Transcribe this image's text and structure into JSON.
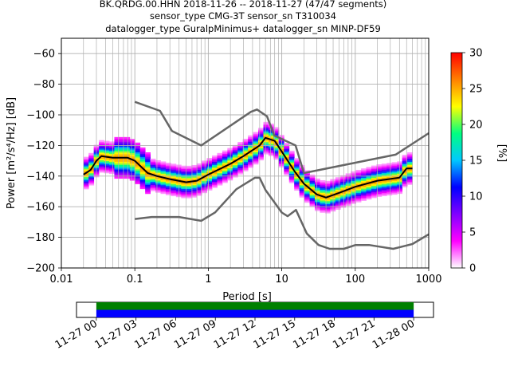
{
  "chart_data": [
    {
      "type": "heatmap",
      "subtype": "probabilistic-power-spectral-density",
      "title_lines": [
        "BK.QRDG.00.HHN   2018-11-26 -- 2018-11-27  (47/47 segments)",
        "sensor_type CMG-3T sensor_sn T310034",
        "datalogger_type GuralpMinimus+ datalogger_sn MINP-DF59"
      ],
      "xlabel": "Period [s]",
      "ylabel": "Power [m²/s⁴/Hz] [dB]",
      "xscale": "log",
      "xlim": [
        0.01,
        1000
      ],
      "ylim": [
        -200,
        -50
      ],
      "x_tick_labels": [
        "0.01",
        "0.1",
        "1",
        "10",
        "100",
        "1000"
      ],
      "y_ticks": [
        -60,
        -80,
        -100,
        -120,
        -140,
        -160,
        -180,
        -200
      ],
      "grid": true,
      "colorbar": {
        "label": "[%]",
        "range": [
          0,
          30
        ],
        "ticks": [
          0,
          5,
          10,
          15,
          20,
          25,
          30
        ],
        "colormap": [
          "#ffffff",
          "#ff00ff",
          "#8000ff",
          "#0000ff",
          "#00c8ff",
          "#00ff80",
          "#ffff00",
          "#ff8000",
          "#ff0000"
        ]
      },
      "series": [
        {
          "name": "",
          "role": "mode",
          "color": "#000000",
          "period": [
            0.02,
            0.025,
            0.03,
            0.035,
            0.05,
            0.08,
            0.1,
            0.15,
            0.2,
            0.3,
            0.5,
            0.7,
            1,
            2,
            3,
            5,
            6,
            8,
            10,
            15,
            20,
            30,
            40,
            60,
            100,
            200,
            400,
            500,
            600
          ],
          "power": [
            -139,
            -136,
            -130,
            -127,
            -128,
            -128,
            -130,
            -138,
            -140,
            -142,
            -144,
            -143,
            -139,
            -132,
            -127,
            -120,
            -115,
            -117,
            -124,
            -137,
            -145,
            -152,
            -154,
            -151,
            -147,
            -143,
            -141,
            -135,
            -135
          ]
        },
        {
          "name": "",
          "role": "NHNM",
          "color": "#666666",
          "period": [
            0.1,
            0.22,
            0.32,
            0.8,
            3.8,
            4.6,
            6.3,
            7.9,
            15.4,
            20,
            354.8,
            1000
          ],
          "power": [
            -91.5,
            -97.4,
            -110.5,
            -120,
            -98,
            -96.5,
            -101,
            -113.5,
            -120,
            -138,
            -126,
            -112
          ]
        },
        {
          "name": "",
          "role": "NLNM",
          "color": "#666666",
          "period": [
            0.1,
            0.17,
            0.4,
            0.8,
            1.24,
            2.4,
            4.3,
            5,
            6,
            10,
            12,
            15.6,
            21.9,
            31.6,
            45,
            70,
            101,
            154,
            328,
            600,
            1000
          ],
          "power": [
            -168,
            -166.7,
            -166.7,
            -169.2,
            -163.7,
            -148.6,
            -141.1,
            -141.1,
            -149,
            -163.8,
            -166.2,
            -162.1,
            -177.5,
            -185,
            -187.5,
            -187.5,
            -185,
            -185,
            -187.5,
            -184.4,
            -178
          ]
        }
      ]
    },
    {
      "type": "timeline",
      "x_tick_labels": [
        "11-27 00",
        "11-27 03",
        "11-27 06",
        "11-27 09",
        "11-27 12",
        "11-27 15",
        "11-27 18",
        "11-27 21",
        "11-28 00"
      ],
      "range": [
        "11-26 22:30",
        "11-28 01:30"
      ],
      "coverage": [
        {
          "start": "11-27 00",
          "end": "11-28 00",
          "color": "#008000"
        },
        {
          "start": "11-27 00",
          "end": "11-28 00",
          "color": "#0000ff"
        }
      ]
    }
  ]
}
